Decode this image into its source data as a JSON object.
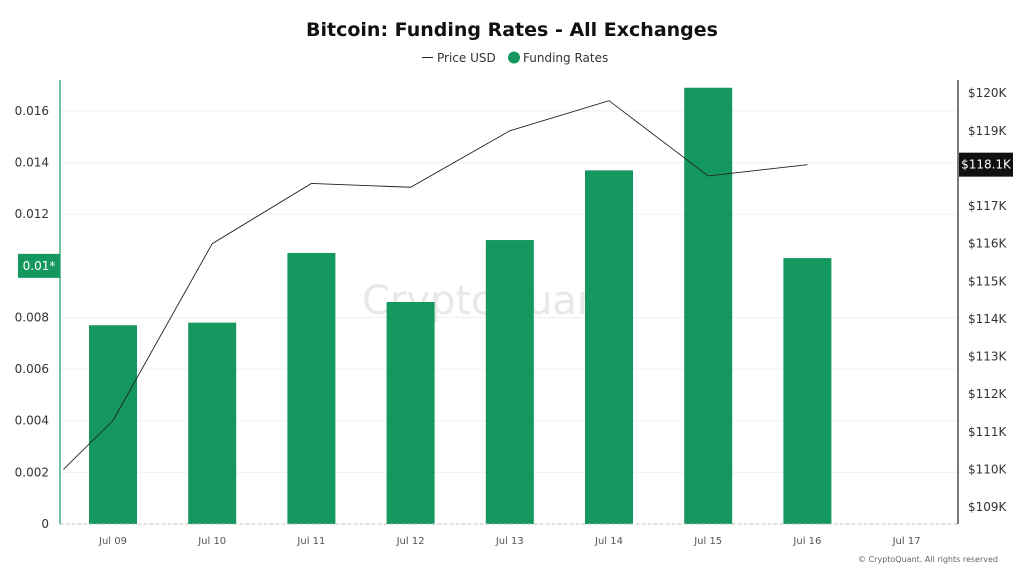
{
  "chart_data": {
    "type": "bar",
    "title": "Bitcoin: Funding Rates - All Exchanges",
    "categories": [
      "Jul 09",
      "Jul 10",
      "Jul 11",
      "Jul 12",
      "Jul 13",
      "Jul 14",
      "Jul 15",
      "Jul 16",
      "Jul 17"
    ],
    "series": [
      {
        "name": "Funding Rates",
        "type": "bar",
        "axis": "left",
        "color": "#14985f",
        "values": [
          0.0077,
          0.0078,
          0.0105,
          0.0086,
          0.011,
          0.0137,
          0.0169,
          0.0103,
          null
        ]
      },
      {
        "name": "Price USD",
        "type": "line",
        "axis": "right",
        "color": "#222222",
        "x": [
          8.5,
          9,
          10,
          11,
          12,
          13,
          14,
          15,
          16
        ],
        "values": [
          110000,
          111300,
          116000,
          117600,
          117500,
          119000,
          119800,
          117800,
          118100
        ]
      }
    ],
    "y_left": {
      "ylim": [
        0,
        0.0172
      ],
      "ticks": [
        "0",
        "0.002",
        "0.004",
        "0.006",
        "0.008",
        "0.012",
        "0.014",
        "0.016"
      ],
      "tick_values": [
        0,
        0.002,
        0.004,
        0.006,
        0.008,
        0.012,
        0.014,
        0.016
      ],
      "marker": {
        "label": "0.01*",
        "value": 0.01
      }
    },
    "y_right": {
      "ylim": [
        108550,
        120350
      ],
      "ticks": [
        "$109K",
        "$110K",
        "$111K",
        "$112K",
        "$113K",
        "$114K",
        "$115K",
        "$116K",
        "$117K",
        "$119K",
        "$120K"
      ],
      "tick_values": [
        109000,
        110000,
        111000,
        112000,
        113000,
        114000,
        115000,
        116000,
        117000,
        119000,
        120000
      ],
      "marker": {
        "label": "$118.1K",
        "value": 118100
      }
    },
    "legend": {
      "placement": "top-center",
      "items": [
        "Price USD",
        "Funding Rates"
      ]
    },
    "grid": true
  },
  "watermark": "CryptoQuant",
  "copyright": "© CryptoQuant. All rights reserved"
}
